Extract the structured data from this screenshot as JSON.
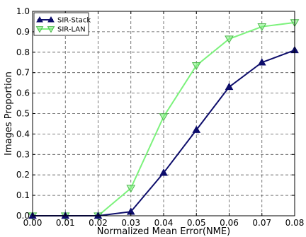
{
  "chart_data": {
    "type": "line",
    "xlabel": "Normalized Mean Error(NME)",
    "ylabel": "Images Proportion",
    "xlim": [
      0.0,
      0.08
    ],
    "ylim": [
      0.0,
      1.0
    ],
    "x_ticks": [
      "0.00",
      "0.01",
      "0.02",
      "0.03",
      "0.04",
      "0.05",
      "0.06",
      "0.07",
      "0.08"
    ],
    "y_ticks": [
      "0.0",
      "0.1",
      "0.2",
      "0.3",
      "0.4",
      "0.5",
      "0.6",
      "0.7",
      "0.8",
      "0.9",
      "1.0"
    ],
    "grid": true,
    "legend_position": "top-left",
    "x": [
      0.0,
      0.01,
      0.02,
      0.03,
      0.04,
      0.05,
      0.06,
      0.07,
      0.08
    ],
    "series": [
      {
        "name": "SIR-Stack",
        "color": "#0d0d6b",
        "marker": "triangle-up",
        "values": [
          0.0,
          0.0,
          0.0,
          0.02,
          0.21,
          0.42,
          0.63,
          0.75,
          0.81
        ]
      },
      {
        "name": "SIR-LAN",
        "color": "#7cf27c",
        "marker": "triangle-down",
        "values": [
          0.0,
          0.0,
          0.0,
          0.135,
          0.485,
          0.735,
          0.865,
          0.925,
          0.945
        ]
      }
    ]
  }
}
